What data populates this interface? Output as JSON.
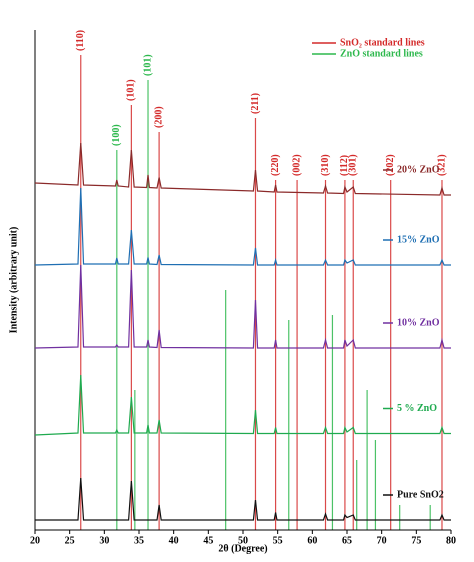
{
  "chart_data": {
    "type": "line",
    "x_label": "2θ (Degree)",
    "y_label": "Intensity (arbitrary unit)",
    "xlim": [
      20,
      80
    ],
    "xticks": [
      20,
      25,
      30,
      35,
      40,
      45,
      50,
      55,
      60,
      65,
      70,
      75,
      80
    ],
    "ylim": [
      0,
      100
    ],
    "x": [
      20,
      26.2,
      26.6,
      27.0,
      31.6,
      31.8,
      32.0,
      33.5,
      33.9,
      34.3,
      36.1,
      36.3,
      36.5,
      37.6,
      37.9,
      38.2,
      51.5,
      51.8,
      52.1,
      54.5,
      54.7,
      54.9,
      61.6,
      61.9,
      62.2,
      64.5,
      64.7,
      65.0,
      65.9,
      66.2,
      78.4,
      78.7,
      79.0,
      80
    ],
    "series": [
      {
        "name": "20% ZnO",
        "color": "#8b2a2a",
        "values": [
          69.4,
          69,
          77.4,
          69,
          68.8,
          70,
          68.8,
          68.6,
          76,
          68.6,
          68.5,
          71,
          68.5,
          68.4,
          70.5,
          68.4,
          67.8,
          72,
          67.8,
          67.6,
          69,
          67.6,
          67.4,
          68.8,
          67.4,
          67.3,
          68.6,
          67.6,
          68.6,
          67.3,
          67,
          68.4,
          67,
          67
        ]
      },
      {
        "name": "15% ZnO",
        "color": "#1f6fb3",
        "values": [
          53,
          53.2,
          68.4,
          53.2,
          53.2,
          54.4,
          53.2,
          53.2,
          60,
          53.2,
          53.2,
          54.5,
          53.2,
          53.1,
          55,
          53.1,
          53,
          56.4,
          53,
          53,
          54,
          53,
          53,
          54,
          53,
          53,
          54,
          53.4,
          54,
          53,
          53,
          54,
          53,
          53
        ]
      },
      {
        "name": "10% ZnO",
        "color": "#7030a0",
        "values": [
          36.4,
          36.6,
          53,
          36.6,
          36.6,
          37,
          36.6,
          36.6,
          52,
          36.6,
          36.6,
          38,
          36.6,
          36.5,
          40,
          36.5,
          36.4,
          46,
          36.4,
          36.4,
          38,
          36.4,
          36.4,
          38,
          36.4,
          36.4,
          38,
          36.8,
          38,
          36.4,
          36.4,
          38,
          36.4,
          36.4
        ]
      },
      {
        "name": "5 % ZnO",
        "color": "#1faa4f",
        "values": [
          19,
          19.4,
          31,
          19.4,
          19.4,
          20,
          19.4,
          19.4,
          26.6,
          19.4,
          19.4,
          21,
          19.4,
          19.4,
          22,
          19.4,
          19.3,
          24,
          19.3,
          19.3,
          20.5,
          19.3,
          19.3,
          20.5,
          19.3,
          19.3,
          20.5,
          19.6,
          20.5,
          19.3,
          19.3,
          20.5,
          19.3,
          19.3
        ]
      },
      {
        "name": "Pure SnO2",
        "color": "#111111",
        "values": [
          2,
          2,
          10.4,
          2,
          2,
          2,
          2,
          2,
          9.8,
          2,
          2,
          2,
          2,
          2,
          5,
          2,
          2,
          6,
          2,
          2,
          3.5,
          2,
          2,
          3.2,
          2,
          2,
          3,
          2.5,
          3,
          2,
          2,
          3,
          2,
          2
        ]
      }
    ],
    "reference_lines": [
      {
        "name": "SnO₂ standard lines",
        "color": "#d42a2a",
        "positions": [
          26.6,
          33.9,
          37.9,
          51.8,
          54.7,
          57.8,
          61.9,
          64.7,
          65.9,
          71.3,
          78.7
        ],
        "values": [
          95,
          85,
          79.6,
          82.4,
          70,
          70,
          70,
          70,
          70,
          70,
          70
        ],
        "labels": [
          "(110)",
          "(101)",
          "(200)",
          "(211)",
          "(220)",
          "(002)",
          "(310)",
          "(112)",
          "(301)",
          "(202)",
          "(321)"
        ]
      },
      {
        "name": "ZnO standard lines",
        "color": "#2db84d",
        "positions": [
          31.8,
          34.4,
          36.3,
          47.5,
          56.6,
          62.9,
          66.4,
          67.9,
          69.1,
          72.6,
          77.0
        ],
        "values": [
          76,
          28,
          90,
          48,
          42,
          43,
          14,
          28,
          18,
          5,
          5
        ],
        "labels": [
          "(100)",
          null,
          "(101)",
          null,
          null,
          null,
          null,
          null,
          null,
          null,
          null
        ]
      }
    ]
  }
}
